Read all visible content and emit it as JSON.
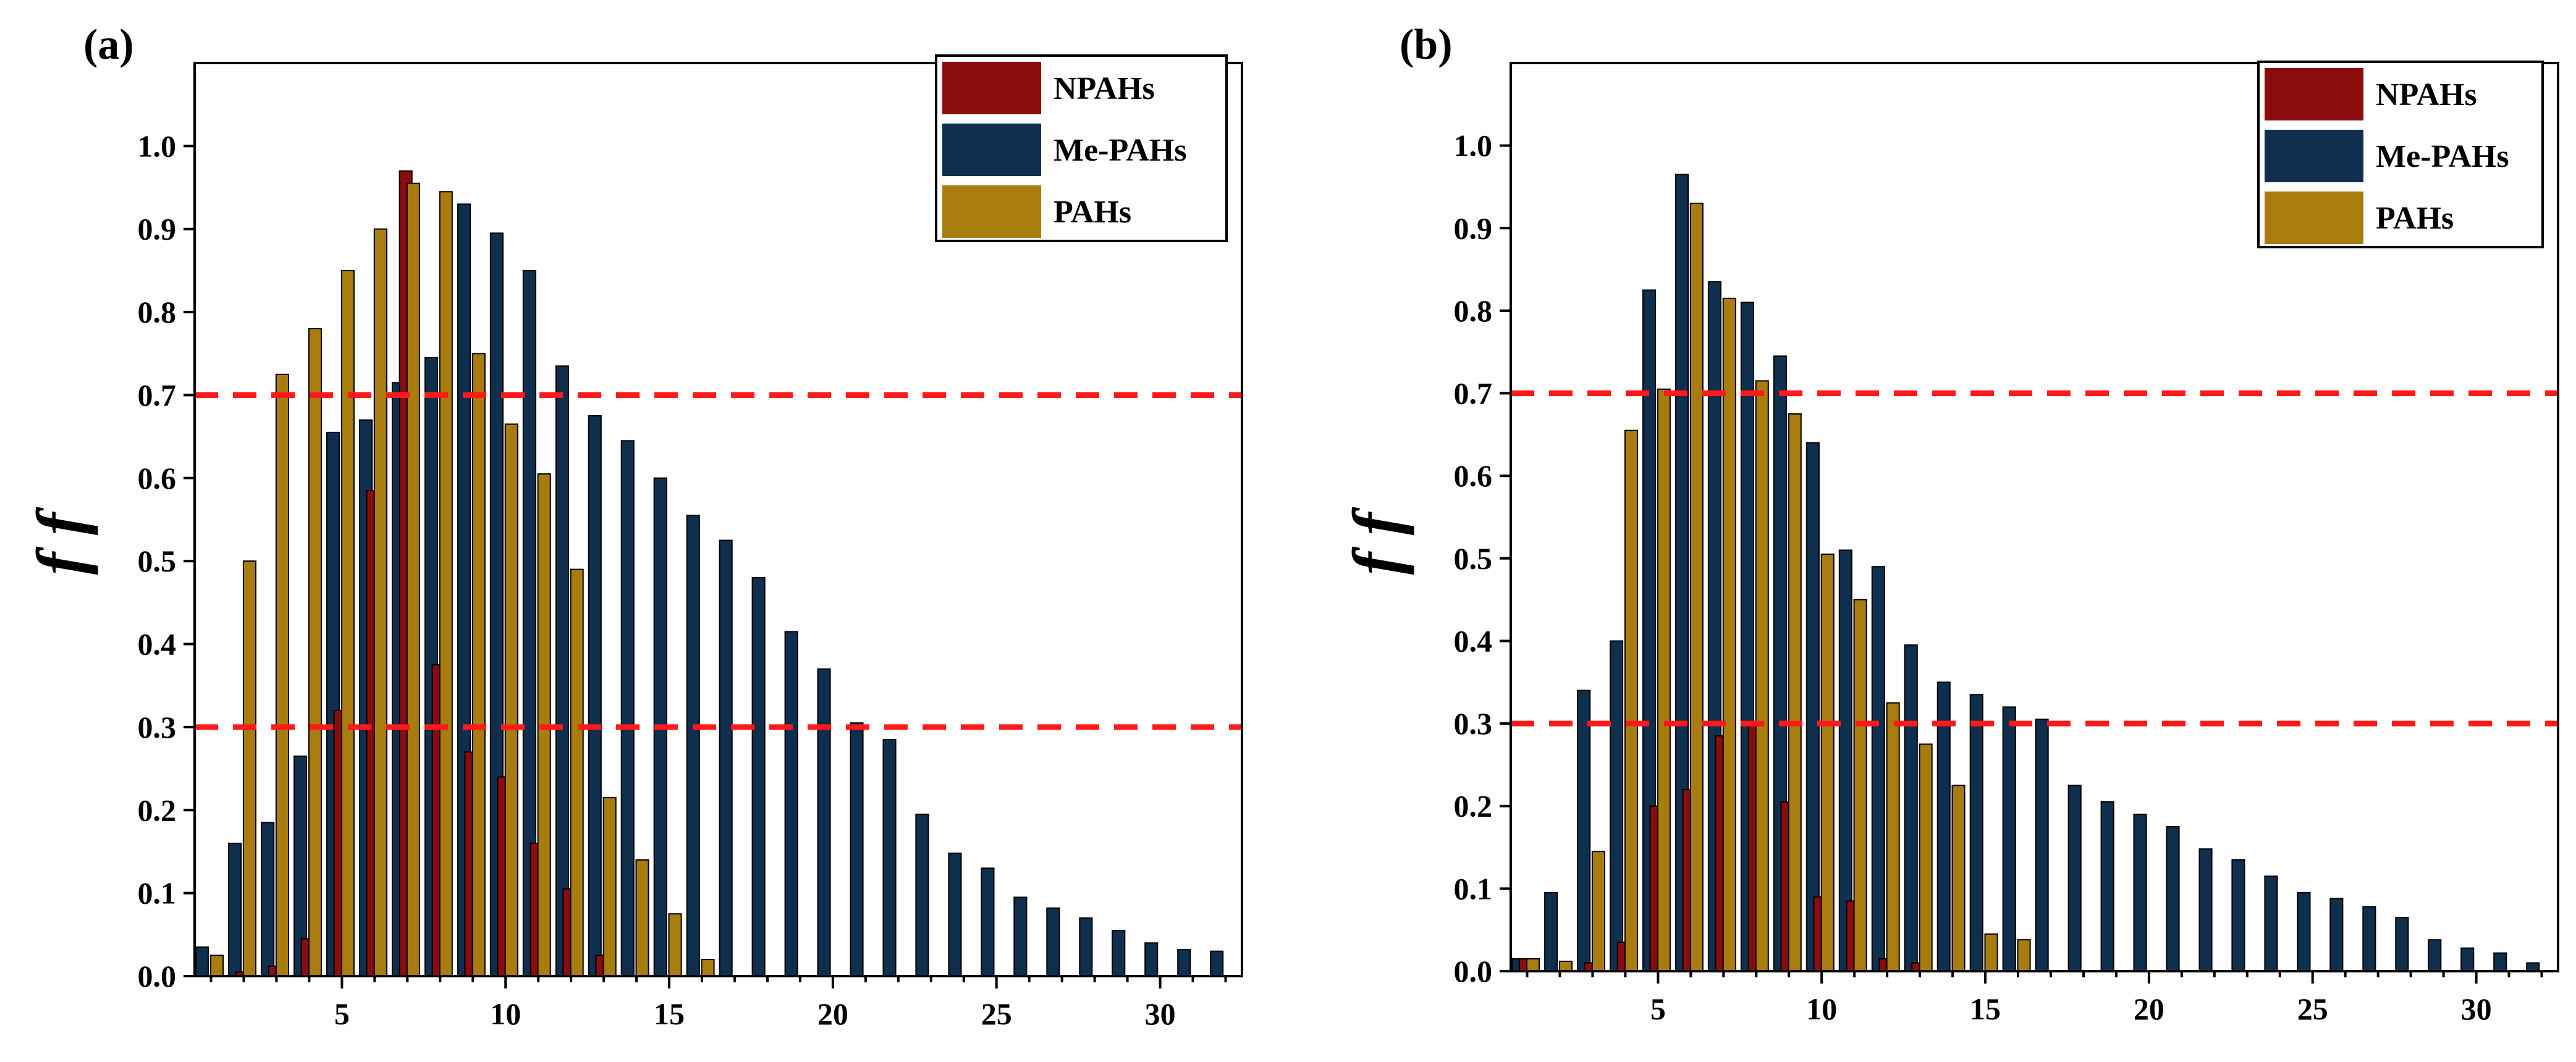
{
  "colors": {
    "npahs": "#8b0c0c",
    "mepahs": "#0f2f4f",
    "pahs": "#a97c0f",
    "ref_line": "#ff1a1a"
  },
  "chart_data": [
    {
      "type": "bar",
      "panel_label": "(a)",
      "ylabel": "f f",
      "xlim": [
        0.5,
        32.5
      ],
      "ylim": [
        0,
        1.1
      ],
      "xticks": [
        5,
        10,
        15,
        20,
        25,
        30
      ],
      "yticks": [
        0.0,
        0.1,
        0.2,
        0.3,
        0.4,
        0.5,
        0.6,
        0.7,
        0.8,
        0.9,
        1.0
      ],
      "ytick_labels": [
        "0.0",
        "0.1",
        "0.2",
        "0.3",
        "0.4",
        "0.5",
        "0.6",
        "0.7",
        "0.8",
        "0.9",
        "1.0"
      ],
      "reference_lines": [
        0.7,
        0.3
      ],
      "legend": {
        "placement": "top-right",
        "entries": [
          "NPAHs",
          "Me-PAHs",
          "PAHs"
        ]
      },
      "x": [
        1,
        2,
        3,
        4,
        5,
        6,
        7,
        8,
        9,
        10,
        11,
        12,
        13,
        14,
        15,
        16,
        17,
        18,
        19,
        20,
        21,
        22,
        23,
        24,
        25,
        26,
        27,
        28,
        29,
        30,
        31,
        32
      ],
      "series": [
        {
          "name": "NPAHs",
          "values": [
            0,
            0.005,
            0.012,
            0.045,
            0.32,
            0.585,
            0.97,
            0.375,
            0.27,
            0.24,
            0.16,
            0.105,
            0.025,
            0,
            0,
            0,
            0,
            0,
            0,
            0,
            0,
            0,
            0,
            0,
            0,
            0,
            0,
            0,
            0,
            0,
            0,
            0
          ]
        },
        {
          "name": "Me-PAHs",
          "values": [
            0.035,
            0.16,
            0.185,
            0.265,
            0.655,
            0.67,
            0.715,
            0.745,
            0.93,
            0.895,
            0.85,
            0.735,
            0.675,
            0.645,
            0.6,
            0.555,
            0.525,
            0.48,
            0.415,
            0.37,
            0.305,
            0.285,
            0.195,
            0.148,
            0.13,
            0.095,
            0.082,
            0.07,
            0.055,
            0.04,
            0.032,
            0.03
          ]
        },
        {
          "name": "PAHs",
          "values": [
            0.025,
            0.5,
            0.725,
            0.78,
            0.85,
            0.9,
            0.955,
            0.945,
            0.75,
            0.665,
            0.605,
            0.49,
            0.215,
            0.14,
            0.075,
            0.02,
            0,
            0,
            0,
            0,
            0,
            0,
            0,
            0,
            0,
            0,
            0,
            0,
            0,
            0,
            0,
            0
          ]
        }
      ]
    },
    {
      "type": "bar",
      "panel_label": "(b)",
      "ylabel": "f f",
      "xlim": [
        0.5,
        32.5
      ],
      "ylim": [
        0,
        1.1
      ],
      "xticks": [
        5,
        10,
        15,
        20,
        25,
        30
      ],
      "yticks": [
        0.0,
        0.1,
        0.2,
        0.3,
        0.4,
        0.5,
        0.6,
        0.7,
        0.8,
        0.9,
        1.0
      ],
      "ytick_labels": [
        "0.0",
        "0.1",
        "0.2",
        "0.3",
        "0.4",
        "0.5",
        "0.6",
        "0.7",
        "0.8",
        "0.9",
        "1.0"
      ],
      "reference_lines": [
        0.7,
        0.3
      ],
      "legend": {
        "placement": "top-right",
        "entries": [
          "NPAHs",
          "Me-PAHs",
          "PAHs"
        ]
      },
      "x": [
        1,
        2,
        3,
        4,
        5,
        6,
        7,
        8,
        9,
        10,
        11,
        12,
        13,
        14,
        15,
        16,
        17,
        18,
        19,
        20,
        21,
        22,
        23,
        24,
        25,
        26,
        27,
        28,
        29,
        30,
        31,
        32
      ],
      "series": [
        {
          "name": "NPAHs",
          "values": [
            0.015,
            0,
            0.01,
            0.035,
            0.2,
            0.22,
            0.285,
            0.3,
            0.205,
            0.09,
            0.085,
            0.015,
            0.01,
            0,
            0,
            0,
            0,
            0,
            0,
            0,
            0,
            0,
            0,
            0,
            0,
            0,
            0,
            0,
            0,
            0,
            0,
            0
          ]
        },
        {
          "name": "Me-PAHs",
          "values": [
            0.015,
            0.095,
            0.34,
            0.4,
            0.825,
            0.965,
            0.835,
            0.81,
            0.745,
            0.64,
            0.51,
            0.49,
            0.395,
            0.35,
            0.335,
            0.32,
            0.305,
            0.225,
            0.205,
            0.19,
            0.175,
            0.148,
            0.135,
            0.115,
            0.095,
            0.088,
            0.078,
            0.065,
            0.038,
            0.028,
            0.022,
            0.01
          ]
        },
        {
          "name": "PAHs",
          "values": [
            0.015,
            0.012,
            0.145,
            0.655,
            0.705,
            0.93,
            0.815,
            0.715,
            0.675,
            0.505,
            0.45,
            0.325,
            0.275,
            0.225,
            0.045,
            0.038,
            0,
            0,
            0,
            0,
            0,
            0,
            0,
            0,
            0,
            0,
            0,
            0,
            0,
            0,
            0,
            0
          ]
        }
      ]
    }
  ]
}
